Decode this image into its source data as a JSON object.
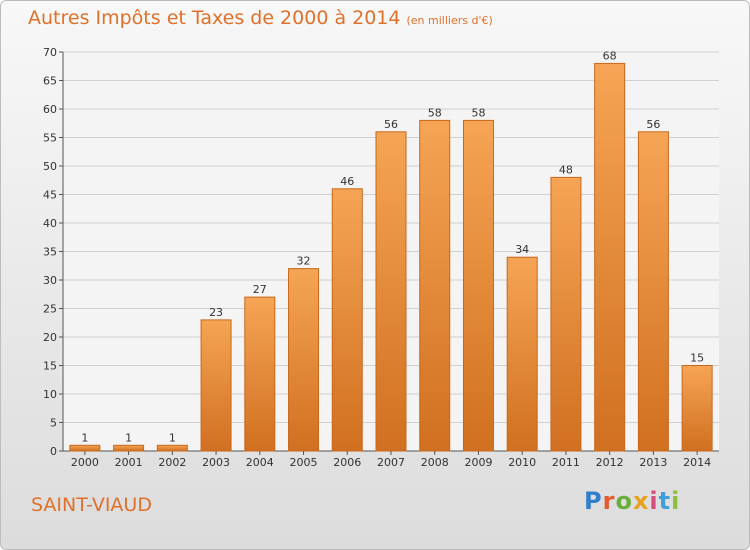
{
  "header": {
    "title": "Autres Impôts et Taxes de 2000 à 2014",
    "unit_note": "(en milliers d'€)"
  },
  "footer": {
    "place": "SAINT-VIAUD",
    "logo_text": "Proxiti"
  },
  "colors": {
    "bar_light": "#f5a555",
    "bar_dark": "#d07020",
    "title": "#e0702a"
  },
  "chart_data": {
    "type": "bar",
    "title": "Autres Impôts et Taxes de 2000 à 2014",
    "subtitle": "(en milliers d'€)",
    "categories": [
      "2000",
      "2001",
      "2002",
      "2003",
      "2004",
      "2005",
      "2006",
      "2007",
      "2008",
      "2009",
      "2010",
      "2011",
      "2012",
      "2013",
      "2014"
    ],
    "values": [
      1,
      1,
      1,
      23,
      27,
      32,
      46,
      56,
      58,
      58,
      34,
      48,
      68,
      56,
      15
    ],
    "ylim": [
      0,
      70
    ],
    "yticks": [
      0,
      5,
      10,
      15,
      20,
      25,
      30,
      35,
      40,
      45,
      50,
      55,
      60,
      65,
      70
    ],
    "grid": true,
    "legend": "none"
  }
}
